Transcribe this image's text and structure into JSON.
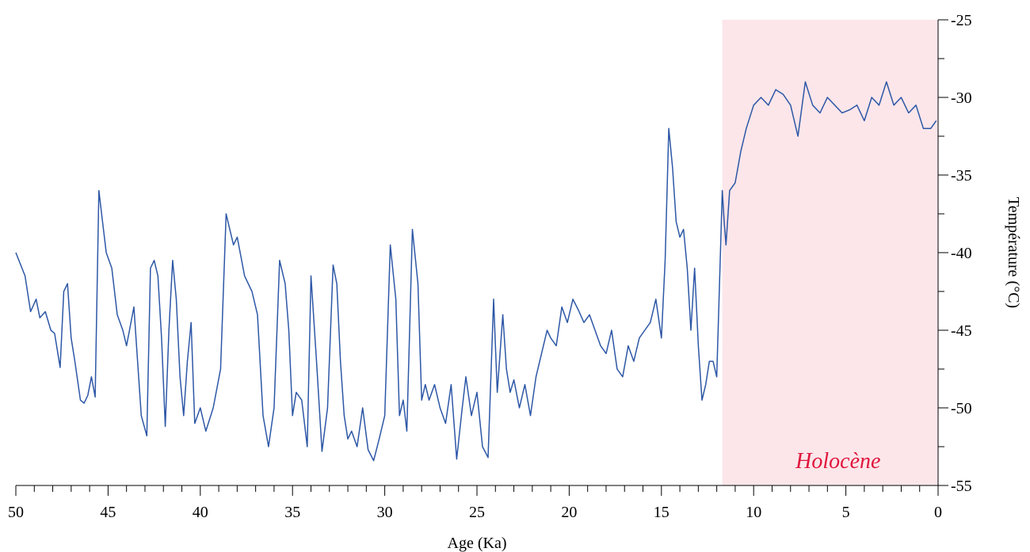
{
  "chart_data": {
    "type": "line",
    "xlabel": "Age (Ka)",
    "ylabel": "Température (°C)",
    "xlim": [
      50,
      0
    ],
    "ylim": [
      -55,
      -25
    ],
    "x_ticks_major": [
      50,
      45,
      40,
      35,
      30,
      25,
      20,
      15,
      10,
      5,
      0
    ],
    "y_ticks_major": [
      -25,
      -30,
      -35,
      -40,
      -45,
      -50,
      -55
    ],
    "x_tick_labels": [
      "50",
      "45",
      "40",
      "35",
      "30",
      "25",
      "20",
      "15",
      "10",
      "5",
      "0"
    ],
    "y_tick_labels": [
      "-25",
      "-30",
      "-35",
      "-40",
      "-45",
      "-50",
      "-55"
    ],
    "y_axis_position": "right",
    "grid": false,
    "shaded_region": {
      "label": "Holocène",
      "x_range": [
        11.7,
        0
      ],
      "color": "#fce6ea",
      "label_color": "#e0143c"
    },
    "series": [
      {
        "color": "#2d57a6",
        "x": [
          50.0,
          49.5,
          49.2,
          48.9,
          48.7,
          48.4,
          48.1,
          47.9,
          47.6,
          47.4,
          47.2,
          47.0,
          46.8,
          46.5,
          46.3,
          46.1,
          45.9,
          45.7,
          45.5,
          45.3,
          45.1,
          44.8,
          44.5,
          44.2,
          44.0,
          43.6,
          43.2,
          42.9,
          42.7,
          42.5,
          42.3,
          42.1,
          41.9,
          41.7,
          41.5,
          41.3,
          41.1,
          40.9,
          40.7,
          40.5,
          40.3,
          40.0,
          39.7,
          39.3,
          38.9,
          38.6,
          38.4,
          38.2,
          38.0,
          37.6,
          37.2,
          36.9,
          36.6,
          36.3,
          36.0,
          35.7,
          35.4,
          35.2,
          35.0,
          34.8,
          34.5,
          34.2,
          34.0,
          33.7,
          33.4,
          33.1,
          32.8,
          32.6,
          32.4,
          32.2,
          32.0,
          31.8,
          31.5,
          31.2,
          30.9,
          30.6,
          30.3,
          30.0,
          29.7,
          29.4,
          29.2,
          29.0,
          28.8,
          28.5,
          28.2,
          28.0,
          27.8,
          27.6,
          27.3,
          27.0,
          26.7,
          26.4,
          26.1,
          25.8,
          25.6,
          25.3,
          25.0,
          24.7,
          24.4,
          24.1,
          23.9,
          23.6,
          23.4,
          23.2,
          23.0,
          22.7,
          22.4,
          22.1,
          21.8,
          21.5,
          21.2,
          21.0,
          20.7,
          20.4,
          20.1,
          19.8,
          19.5,
          19.2,
          18.9,
          18.6,
          18.3,
          18.0,
          17.7,
          17.4,
          17.1,
          16.8,
          16.5,
          16.2,
          15.9,
          15.6,
          15.3,
          15.0,
          14.8,
          14.6,
          14.4,
          14.2,
          14.0,
          13.8,
          13.6,
          13.4,
          13.2,
          13.0,
          12.8,
          12.6,
          12.4,
          12.2,
          12.0,
          11.8,
          11.7,
          11.6,
          11.5,
          11.3,
          11.0,
          10.7,
          10.4,
          10.0,
          9.6,
          9.2,
          8.8,
          8.4,
          8.0,
          7.6,
          7.2,
          6.8,
          6.4,
          6.0,
          5.6,
          5.2,
          4.8,
          4.4,
          4.0,
          3.6,
          3.2,
          2.8,
          2.4,
          2.0,
          1.6,
          1.2,
          0.8,
          0.4,
          0.1
        ],
        "y": [
          -40.0,
          -41.5,
          -43.8,
          -43.0,
          -44.2,
          -43.8,
          -45.0,
          -45.2,
          -47.4,
          -42.5,
          -42.0,
          -45.5,
          -47.0,
          -49.5,
          -49.7,
          -49.2,
          -48.0,
          -49.3,
          -36.0,
          -38.0,
          -40.0,
          -41.0,
          -44.0,
          -45.0,
          -46.0,
          -43.5,
          -50.5,
          -51.8,
          -41.0,
          -40.5,
          -41.5,
          -45.5,
          -51.2,
          -45.0,
          -40.5,
          -43.0,
          -48.0,
          -50.5,
          -47.0,
          -44.5,
          -51.0,
          -50.0,
          -51.5,
          -50.0,
          -47.5,
          -37.5,
          -38.5,
          -39.5,
          -39.0,
          -41.5,
          -42.5,
          -44.0,
          -50.5,
          -52.5,
          -50.0,
          -40.5,
          -42.0,
          -45.0,
          -50.5,
          -49.0,
          -49.5,
          -52.5,
          -41.5,
          -47.0,
          -52.8,
          -50.0,
          -40.8,
          -42.0,
          -47.0,
          -50.5,
          -52.0,
          -51.5,
          -52.5,
          -50.0,
          -52.7,
          -53.4,
          -52.0,
          -50.5,
          -39.5,
          -43.0,
          -50.5,
          -49.5,
          -51.5,
          -38.5,
          -42.0,
          -49.5,
          -48.5,
          -49.5,
          -48.5,
          -50.0,
          -51.0,
          -48.5,
          -53.3,
          -50.0,
          -48.0,
          -50.5,
          -49.0,
          -52.5,
          -53.2,
          -43.0,
          -49.0,
          -44.0,
          -47.5,
          -49.0,
          -48.2,
          -50.0,
          -48.5,
          -50.5,
          -48.0,
          -46.5,
          -45.0,
          -45.5,
          -46.0,
          -43.5,
          -44.5,
          -43.0,
          -43.7,
          -44.5,
          -44.0,
          -45.0,
          -46.0,
          -46.5,
          -45.0,
          -47.5,
          -48.0,
          -46.0,
          -47.0,
          -45.5,
          -45.0,
          -44.5,
          -43.0,
          -45.5,
          -40.5,
          -32.0,
          -34.5,
          -38.0,
          -39.0,
          -38.5,
          -41.0,
          -45.0,
          -41.0,
          -46.0,
          -49.5,
          -48.5,
          -47.0,
          -47.0,
          -48.0,
          -40.0,
          -36.0,
          -38.0,
          -39.5,
          -36.0,
          -35.5,
          -33.5,
          -32.0,
          -30.5,
          -30.0,
          -30.5,
          -29.5,
          -29.8,
          -30.5,
          -32.5,
          -29.0,
          -30.5,
          -31.0,
          -30.0,
          -30.5,
          -31.0,
          -30.8,
          -30.5,
          -31.5,
          -30.0,
          -30.5,
          -29.0,
          -30.5,
          -30.0,
          -31.0,
          -30.5,
          -32.0,
          -32.0,
          -31.5
        ]
      }
    ]
  }
}
